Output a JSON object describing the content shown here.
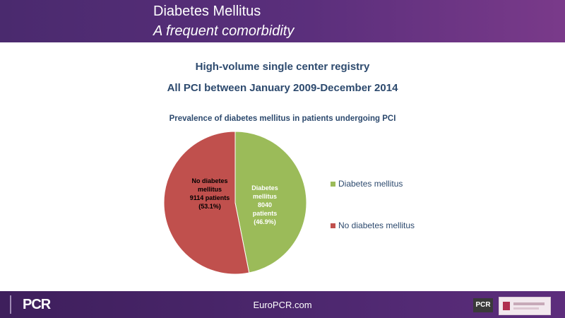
{
  "header": {
    "title": "Diabetes Mellitus",
    "subtitle": "A frequent comorbidity"
  },
  "content": {
    "line1": "High-volume single center registry",
    "line2": "All PCI between January 2009-December 2014"
  },
  "chart_data": {
    "type": "pie",
    "title": "Prevalence of diabetes mellitus in patients undergoing PCI",
    "slices": [
      {
        "name": "Diabetes mellitus",
        "value": 8040,
        "percent": 46.9,
        "color": "#9bbb59",
        "label_lines": [
          "Diabetes",
          "mellitus",
          "8040",
          "patients",
          "(46.9%)"
        ],
        "label_color": "#ffffff"
      },
      {
        "name": "No diabetes mellitus",
        "value": 9114,
        "percent": 53.1,
        "color": "#c0504d",
        "label_lines": [
          "No diabetes",
          "mellitus",
          "9114 patients",
          "(53.1%)"
        ],
        "label_color": "#000000"
      }
    ],
    "legend": [
      "Diabetes mellitus",
      "No diabetes mellitus"
    ],
    "legend_position": "right"
  },
  "footer": {
    "site": "EuroPCR.com",
    "logo_text": "PCR",
    "logo_right_text": "PCR"
  }
}
